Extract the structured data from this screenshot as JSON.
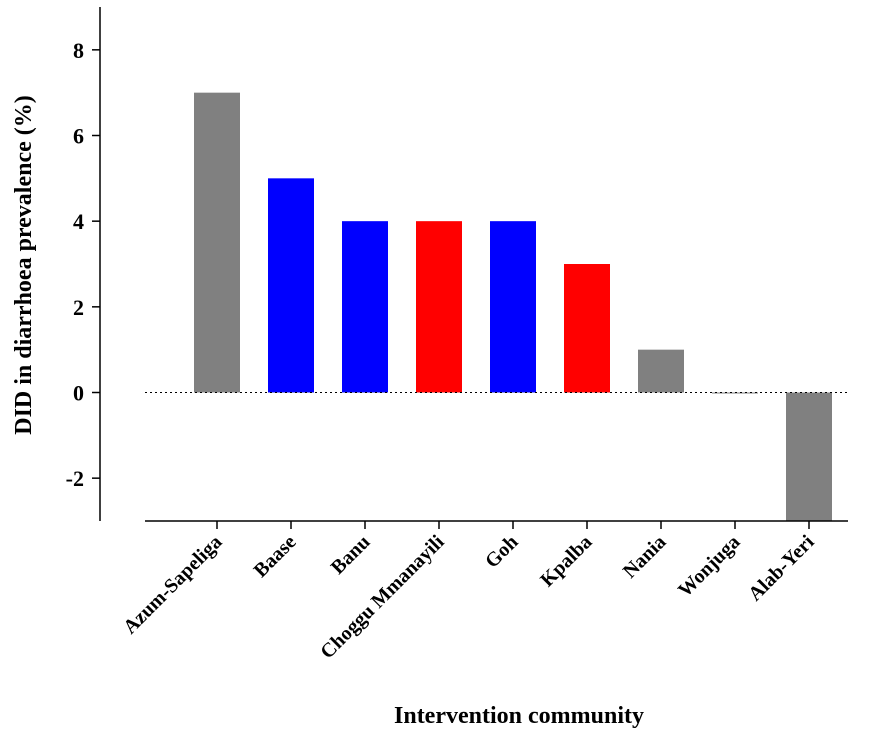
{
  "chart_data": {
    "type": "bar",
    "ylabel": "DID in diarrhoea prevalence (%)",
    "xlabel": "Intervention community",
    "ylim": [
      -3,
      9
    ],
    "yticks": [
      -2,
      0,
      2,
      4,
      6,
      8
    ],
    "zero_line": "dotted",
    "grid": false,
    "legend": "none",
    "categories": [
      "Azum-Sapeliga",
      "Baase",
      "Banu",
      "Choggu Mmanayili",
      "Goh",
      "Kpalba",
      "Nania",
      "Wonjuga",
      "Alab-Yeri"
    ],
    "values": [
      7,
      5,
      4,
      4,
      4,
      3,
      1,
      0,
      -3
    ],
    "colors": [
      "#808080",
      "#0000ff",
      "#0000ff",
      "#ff0000",
      "#0000ff",
      "#ff0000",
      "#808080",
      "#808080",
      "#808080"
    ]
  }
}
